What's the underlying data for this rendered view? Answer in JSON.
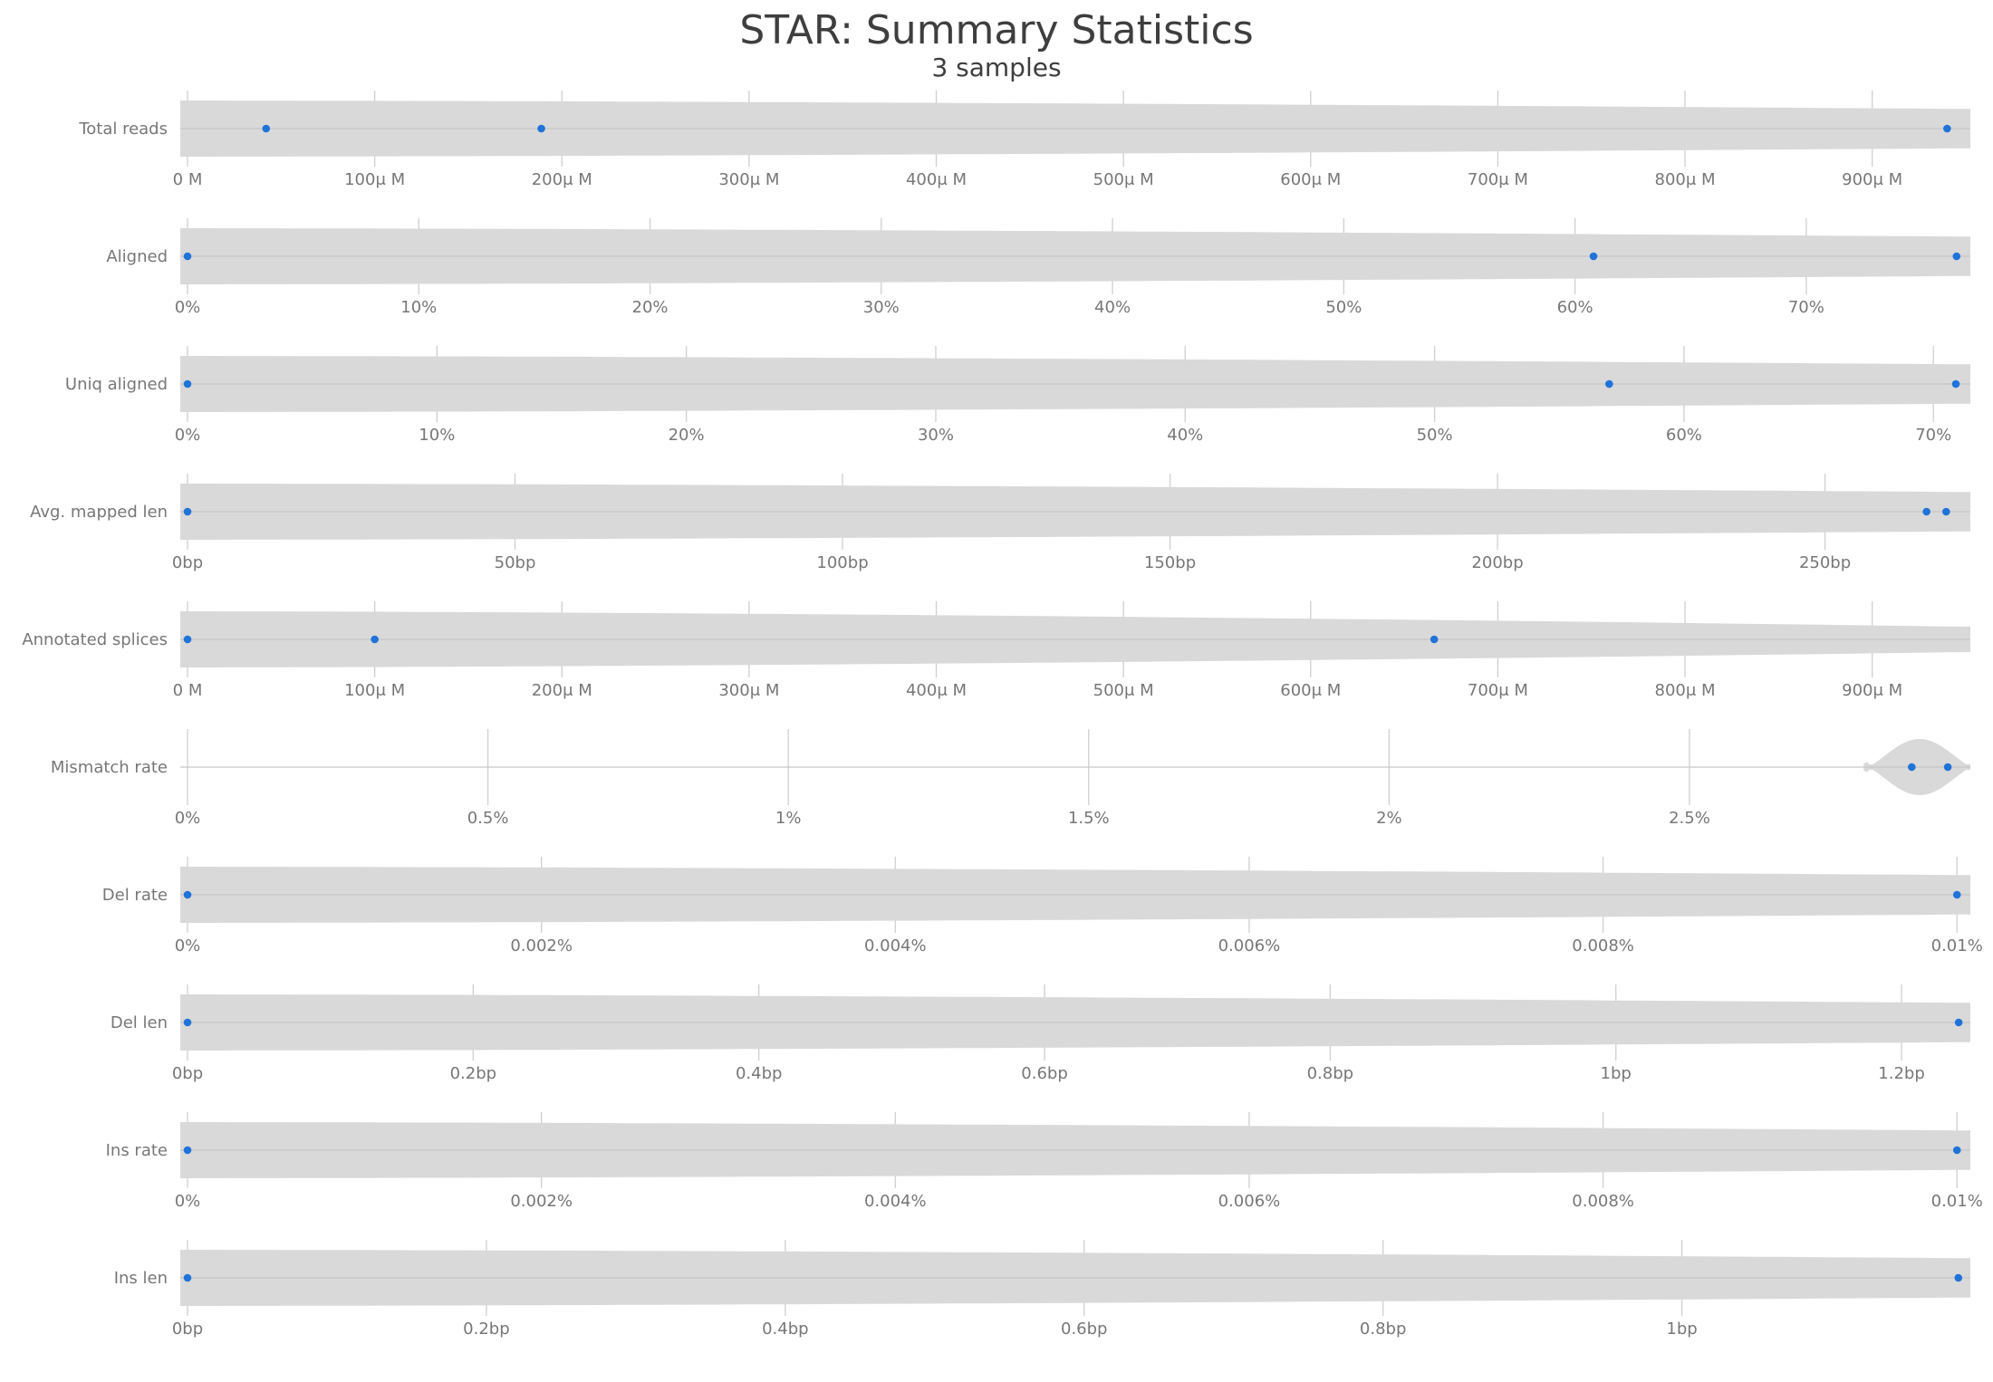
{
  "chart_data": {
    "type": "violin",
    "title": "STAR: Summary Statistics",
    "subtitle": "3 samples",
    "colors": {
      "violin": "#d9d9d9",
      "point": "#1f73d9",
      "text": "#777777",
      "grid": "#cfcfcf"
    },
    "rows": [
      {
        "label": "Total reads",
        "xlim": [
          0,
          0.00095
        ],
        "ticks": [
          0,
          0.0001,
          0.0002,
          0.0003,
          0.0004,
          0.0005,
          0.0006,
          0.0007,
          0.0008,
          0.0009
        ],
        "tick_labels": [
          "0 M",
          "100μ M",
          "200μ M",
          "300μ M",
          "400μ M",
          "500μ M",
          "600μ M",
          "700μ M",
          "800μ M",
          "900μ M"
        ],
        "points": [
          4.2e-05,
          0.000189,
          0.00094
        ],
        "violin": "wide",
        "vstart": 0
      },
      {
        "label": "Aligned",
        "xlim": [
          0,
          76.9
        ],
        "ticks": [
          0,
          10,
          20,
          30,
          40,
          50,
          60,
          70
        ],
        "tick_labels": [
          "0%",
          "10%",
          "20%",
          "30%",
          "40%",
          "50%",
          "60%",
          "70%"
        ],
        "points": [
          0,
          60.8,
          76.5
        ],
        "violin": "wide",
        "vstart": 0
      },
      {
        "label": "Uniq aligned",
        "xlim": [
          0,
          71.3
        ],
        "ticks": [
          0,
          10,
          20,
          30,
          40,
          50,
          60,
          70
        ],
        "tick_labels": [
          "0%",
          "10%",
          "20%",
          "30%",
          "40%",
          "50%",
          "60%",
          "70%"
        ],
        "points": [
          0,
          57.0,
          70.9
        ],
        "violin": "wide",
        "vstart": 0
      },
      {
        "label": "Avg. mapped len",
        "xlim": [
          0,
          271.5
        ],
        "ticks": [
          0,
          50,
          100,
          150,
          200,
          250
        ],
        "tick_labels": [
          "0bp",
          "50bp",
          "100bp",
          "150bp",
          "200bp",
          "250bp"
        ],
        "points": [
          0,
          265.5,
          268.5
        ],
        "violin": "wide",
        "vstart": 0
      },
      {
        "label": "Annotated splices",
        "xlim": [
          0,
          0.00095
        ],
        "ticks": [
          0,
          0.0001,
          0.0002,
          0.0003,
          0.0004,
          0.0005,
          0.0006,
          0.0007,
          0.0008,
          0.0009
        ],
        "tick_labels": [
          "0 M",
          "100μ M",
          "200μ M",
          "300μ M",
          "400μ M",
          "500μ M",
          "600μ M",
          "700μ M",
          "800μ M",
          "900μ M"
        ],
        "points": [
          0,
          0.0001,
          0.000666
        ],
        "violin": "taper",
        "vstart": 0
      },
      {
        "label": "Mismatch rate",
        "xlim": [
          0,
          2.96
        ],
        "ticks": [
          0,
          0.5,
          1,
          1.5,
          2,
          2.5
        ],
        "tick_labels": [
          "0%",
          "0.5%",
          "1%",
          "1.5%",
          "2%",
          "2.5%"
        ],
        "points": [
          2.87,
          2.93
        ],
        "violin": "bulb",
        "vstart": 2.79
      },
      {
        "label": "Del rate",
        "xlim": [
          0,
          0.01005
        ],
        "ticks": [
          0,
          0.002,
          0.004,
          0.006,
          0.008,
          0.01
        ],
        "tick_labels": [
          "0%",
          "0.002%",
          "0.004%",
          "0.006%",
          "0.008%",
          "0.01%"
        ],
        "points": [
          0,
          0.01
        ],
        "violin": "wide",
        "vstart": 0
      },
      {
        "label": "Del len",
        "xlim": [
          0,
          1.245
        ],
        "ticks": [
          0,
          0.2,
          0.4,
          0.6,
          0.8,
          1,
          1.2
        ],
        "tick_labels": [
          "0bp",
          "0.2bp",
          "0.4bp",
          "0.6bp",
          "0.8bp",
          "1bp",
          "1.2bp"
        ],
        "points": [
          0,
          1.24
        ],
        "violin": "wide",
        "vstart": 0
      },
      {
        "label": "Ins rate",
        "xlim": [
          0,
          0.01005
        ],
        "ticks": [
          0,
          0.002,
          0.004,
          0.006,
          0.008,
          0.01
        ],
        "tick_labels": [
          "0%",
          "0.002%",
          "0.004%",
          "0.006%",
          "0.008%",
          "0.01%"
        ],
        "points": [
          0,
          0.01
        ],
        "violin": "wide",
        "vstart": 0
      },
      {
        "label": "Ins len",
        "xlim": [
          0,
          1.19
        ],
        "ticks": [
          0,
          0.2,
          0.4,
          0.6,
          0.8,
          1
        ],
        "tick_labels": [
          "0bp",
          "0.2bp",
          "0.4bp",
          "0.6bp",
          "0.8bp",
          "1bp"
        ],
        "points": [
          0,
          1.185
        ],
        "violin": "wide",
        "vstart": 0
      }
    ]
  }
}
